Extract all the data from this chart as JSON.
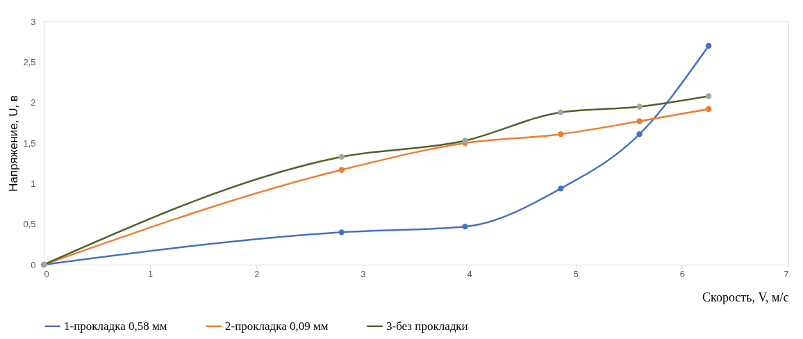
{
  "chart_data": {
    "type": "line",
    "xlabel": "Скорость, V, м/с",
    "ylabel": "Напряжение, U, в",
    "xlim": [
      0,
      7
    ],
    "xticks": [
      0,
      1,
      2,
      3,
      4,
      5,
      6,
      7
    ],
    "ylim": [
      0,
      3
    ],
    "yticks": [
      0,
      {
        "value": 0.5,
        "label": "0,5"
      },
      1,
      {
        "value": 1.5,
        "label": "1,5"
      },
      2,
      {
        "value": 2.5,
        "label": "2,5"
      },
      3
    ],
    "x": [
      0,
      2.8,
      3.96,
      4.86,
      5.6,
      6.25
    ],
    "series": [
      {
        "name": "1-прокладка 0,58 мм",
        "color": "#4472c4",
        "values": [
          0,
          0.4,
          0.47,
          0.94,
          1.61,
          2.7
        ]
      },
      {
        "name": "2-прокладка 0,09 мм",
        "color": "#ed7d31",
        "values": [
          0,
          1.17,
          1.5,
          1.61,
          1.77,
          1.92
        ]
      },
      {
        "name": "3-без прокладки",
        "color": "#4f6228",
        "colors": [
          "#a5a5a5",
          "#a5a5a5",
          "#a5a5a5",
          "#a5a5a5",
          "#a5a5a5",
          "#a5a5a5"
        ],
        "values": [
          0,
          1.33,
          1.53,
          1.88,
          1.95,
          2.08
        ]
      }
    ],
    "marker": "circle",
    "line_style": "solid",
    "grid": false,
    "legend": "bottom"
  }
}
